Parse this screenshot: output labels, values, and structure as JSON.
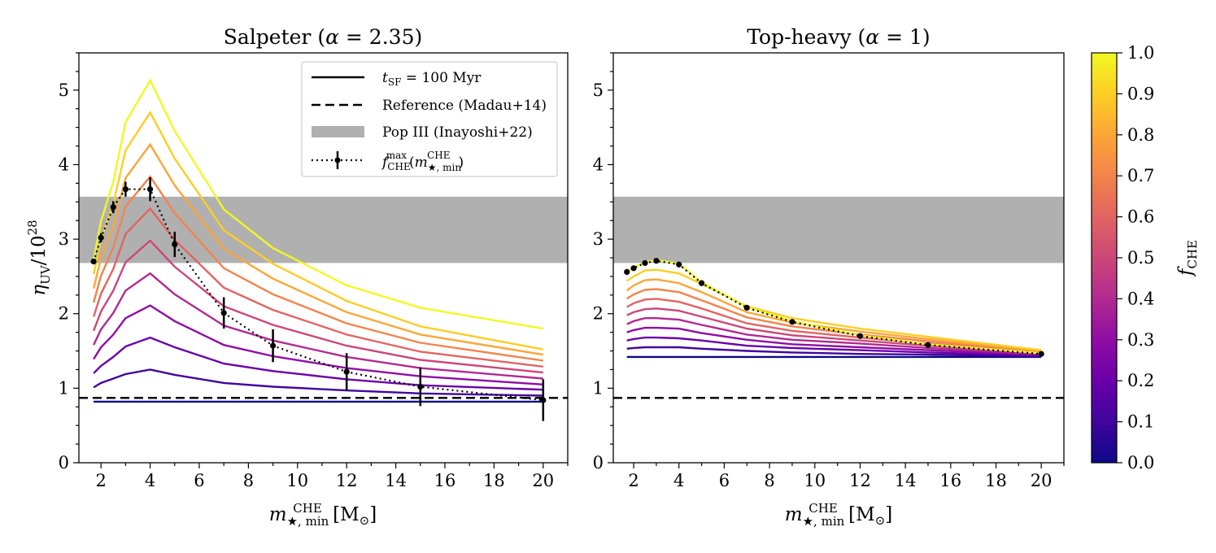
{
  "figure": {
    "ylabel": "η_UV/10^28",
    "colorbar": {
      "label": "f_CHE",
      "range": [
        0,
        1
      ],
      "ticks": [
        0.0,
        0.1,
        0.2,
        0.3,
        0.4,
        0.5,
        0.6,
        0.7,
        0.8,
        0.9,
        1.0
      ],
      "tick_labels": [
        "0.0",
        "0.1",
        "0.2",
        "0.3",
        "0.4",
        "0.5",
        "0.6",
        "0.7",
        "0.8",
        "0.9",
        "1.0"
      ],
      "colormap": "plasma"
    },
    "legend": {
      "entries": [
        {
          "key": "tsf",
          "label": "t_SF = 100 Myr",
          "label_main": "t",
          "label_sub": "SF",
          "label_rest": " = 100 Myr"
        },
        {
          "key": "reference",
          "label": "Reference (Madau+14)"
        },
        {
          "key": "pop3",
          "label": "Pop III (Inayoshi+22)"
        },
        {
          "key": "fmax",
          "label": "f_CHE^max(m_★,min^CHE)",
          "label_main": "f",
          "label_sub": "CHE",
          "label_sup": "max",
          "label_paren_open": "(",
          "label_m": "m",
          "label_m_sub": "★, min",
          "label_m_sup": "CHE",
          "label_paren_close": ")"
        }
      ]
    },
    "xlabel_main": "m",
    "xlabel_sub": "★, min",
    "xlabel_sup": "CHE",
    "xlabel_unit": " [M",
    "xlabel_unit_sub": "⊙",
    "xlabel_unit_close": "]",
    "ylabel_eta": "η",
    "ylabel_sub": "UV",
    "ylabel_slash": "/10",
    "ylabel_sup": "28",
    "colorbar_label_main": "f",
    "colorbar_label_sub": "CHE"
  },
  "chart_data": [
    {
      "type": "line",
      "title": "Salpeter (α = 2.35)",
      "title_main": "Salpeter (",
      "title_alpha": "α",
      "title_rest": " = 2.35)",
      "xlabel": "m_★,min^CHE [M_⊙]",
      "ylabel": "η_UV/10^28",
      "xlim": [
        1.1,
        21.0
      ],
      "ylim": [
        0,
        5.5
      ],
      "xticks": [
        2,
        4,
        6,
        8,
        10,
        12,
        14,
        16,
        18,
        20
      ],
      "yticks": [
        0,
        1,
        2,
        3,
        4,
        5
      ],
      "x": [
        1.7,
        2,
        2.5,
        3,
        4,
        5,
        7,
        9,
        12,
        15,
        20
      ],
      "reference_line": 0.87,
      "pop3_band": [
        2.68,
        3.57
      ],
      "series": [
        {
          "f_che": 0.0,
          "values": [
            0.82,
            0.82,
            0.82,
            0.82,
            0.82,
            0.82,
            0.82,
            0.82,
            0.82,
            0.82,
            0.82
          ]
        },
        {
          "f_che": 0.1,
          "values": [
            1.01,
            1.07,
            1.13,
            1.19,
            1.25,
            1.18,
            1.07,
            1.02,
            0.97,
            0.93,
            0.9
          ]
        },
        {
          "f_che": 0.2,
          "values": [
            1.2,
            1.3,
            1.42,
            1.56,
            1.68,
            1.55,
            1.33,
            1.23,
            1.12,
            1.04,
            0.98
          ]
        },
        {
          "f_che": 0.3,
          "values": [
            1.39,
            1.55,
            1.72,
            1.94,
            2.11,
            1.9,
            1.58,
            1.43,
            1.27,
            1.16,
            1.05
          ]
        },
        {
          "f_che": 0.4,
          "values": [
            1.58,
            1.79,
            2.01,
            2.31,
            2.54,
            2.26,
            1.84,
            1.64,
            1.42,
            1.27,
            1.13
          ]
        },
        {
          "f_che": 0.5,
          "values": [
            1.77,
            2.03,
            2.31,
            2.69,
            2.98,
            2.63,
            2.1,
            1.85,
            1.57,
            1.38,
            1.21
          ]
        },
        {
          "f_che": 0.6,
          "values": [
            1.96,
            2.27,
            2.6,
            3.07,
            3.41,
            2.99,
            2.35,
            2.05,
            1.72,
            1.49,
            1.29
          ]
        },
        {
          "f_che": 0.7,
          "values": [
            2.15,
            2.51,
            2.89,
            3.44,
            3.84,
            3.35,
            2.61,
            2.26,
            1.87,
            1.61,
            1.37
          ]
        },
        {
          "f_che": 0.8,
          "values": [
            2.34,
            2.75,
            3.18,
            3.82,
            4.27,
            3.72,
            2.87,
            2.47,
            2.02,
            1.72,
            1.45
          ]
        },
        {
          "f_che": 0.9,
          "values": [
            2.53,
            3.0,
            3.48,
            4.19,
            4.7,
            4.08,
            3.12,
            2.67,
            2.17,
            1.83,
            1.52
          ]
        },
        {
          "f_che": 1.0,
          "values": [
            2.72,
            3.24,
            3.77,
            4.57,
            5.13,
            4.45,
            3.4,
            2.88,
            2.38,
            2.08,
            1.8
          ]
        }
      ],
      "fmax_points": {
        "x": [
          1.7,
          2,
          2.5,
          3,
          4,
          5,
          7,
          9,
          12,
          15,
          20
        ],
        "y": [
          2.7,
          3.02,
          3.43,
          3.67,
          3.67,
          2.93,
          2.01,
          1.57,
          1.22,
          1.02,
          0.84
        ],
        "yerr": [
          0.03,
          0.06,
          0.08,
          0.1,
          0.16,
          0.17,
          0.21,
          0.22,
          0.25,
          0.26,
          0.28
        ]
      }
    },
    {
      "type": "line",
      "title": "Top-heavy (α = 1)",
      "title_main": "Top-heavy (",
      "title_alpha": "α",
      "title_rest": " = 1)",
      "xlabel": "m_★,min^CHE [M_⊙]",
      "xlim": [
        1.1,
        21.0
      ],
      "ylim": [
        0,
        5.5
      ],
      "xticks": [
        2,
        4,
        6,
        8,
        10,
        12,
        14,
        16,
        18,
        20
      ],
      "yticks": [
        0,
        1,
        2,
        3,
        4,
        5
      ],
      "x": [
        1.7,
        2,
        2.5,
        3,
        4,
        5,
        7,
        9,
        12,
        15,
        20
      ],
      "reference_line": 0.87,
      "pop3_band": [
        2.68,
        3.57
      ],
      "series": [
        {
          "f_che": 0.0,
          "values": [
            1.42,
            1.42,
            1.42,
            1.42,
            1.42,
            1.42,
            1.42,
            1.42,
            1.42,
            1.42,
            1.42
          ]
        },
        {
          "f_che": 0.1,
          "values": [
            1.53,
            1.54,
            1.55,
            1.55,
            1.55,
            1.53,
            1.5,
            1.48,
            1.46,
            1.45,
            1.43
          ]
        },
        {
          "f_che": 0.2,
          "values": [
            1.64,
            1.66,
            1.68,
            1.68,
            1.67,
            1.64,
            1.57,
            1.54,
            1.51,
            1.48,
            1.44
          ]
        },
        {
          "f_che": 0.3,
          "values": [
            1.75,
            1.78,
            1.81,
            1.81,
            1.8,
            1.74,
            1.65,
            1.59,
            1.55,
            1.51,
            1.45
          ]
        },
        {
          "f_che": 0.4,
          "values": [
            1.86,
            1.9,
            1.94,
            1.94,
            1.92,
            1.85,
            1.72,
            1.65,
            1.6,
            1.54,
            1.46
          ]
        },
        {
          "f_che": 0.5,
          "values": [
            1.98,
            2.02,
            2.06,
            2.07,
            2.04,
            1.96,
            1.8,
            1.71,
            1.64,
            1.57,
            1.47
          ]
        },
        {
          "f_che": 0.6,
          "values": [
            2.09,
            2.14,
            2.19,
            2.2,
            2.16,
            2.07,
            1.87,
            1.77,
            1.68,
            1.6,
            1.48
          ]
        },
        {
          "f_che": 0.7,
          "values": [
            2.2,
            2.26,
            2.32,
            2.33,
            2.29,
            2.18,
            1.95,
            1.83,
            1.72,
            1.63,
            1.49
          ]
        },
        {
          "f_che": 0.8,
          "values": [
            2.31,
            2.38,
            2.45,
            2.46,
            2.41,
            2.29,
            2.02,
            1.88,
            1.76,
            1.66,
            1.5
          ]
        },
        {
          "f_che": 0.9,
          "values": [
            2.44,
            2.5,
            2.58,
            2.59,
            2.54,
            2.4,
            2.1,
            1.94,
            1.8,
            1.69,
            1.51
          ]
        },
        {
          "f_che": 1.0,
          "values": [
            2.56,
            2.62,
            2.69,
            2.72,
            2.67,
            2.42,
            2.09,
            1.9,
            1.71,
            1.59,
            1.47
          ]
        }
      ],
      "fmax_points": {
        "x": [
          1.7,
          2,
          2.5,
          3,
          4,
          5,
          7,
          9,
          12,
          15,
          20
        ],
        "y": [
          2.56,
          2.61,
          2.68,
          2.71,
          2.66,
          2.41,
          2.08,
          1.89,
          1.7,
          1.58,
          1.46
        ],
        "yerr": [
          0,
          0,
          0,
          0,
          0,
          0,
          0,
          0,
          0,
          0,
          0
        ]
      }
    }
  ]
}
